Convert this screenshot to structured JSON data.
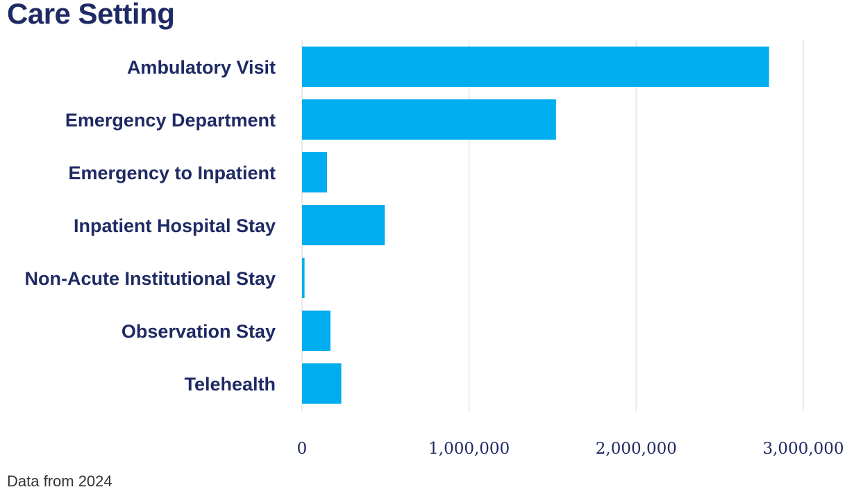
{
  "chart_data": {
    "type": "bar",
    "orientation": "horizontal",
    "title": "Care Setting",
    "xlabel": "",
    "ylabel": "",
    "categories": [
      "Ambulatory Visit",
      "Emergency Department",
      "Emergency to Inpatient",
      "Inpatient Hospital Stay",
      "Non-Acute Institutional Stay",
      "Observation Stay",
      "Telehealth"
    ],
    "values": [
      2795000,
      1520000,
      150000,
      495000,
      15000,
      170000,
      235000
    ],
    "xlim": [
      0,
      3000000
    ],
    "xticks": [
      0,
      1000000,
      2000000,
      3000000
    ],
    "xtick_labels": [
      "0",
      "1,000,000",
      "2,000,000",
      "3,000,000"
    ],
    "grid": "vertical",
    "legend": "none",
    "bar_color": "#00adee",
    "text_color": "#1f2a64",
    "grid_color": "#e4e4e4"
  },
  "footnote": "Data from 2024"
}
